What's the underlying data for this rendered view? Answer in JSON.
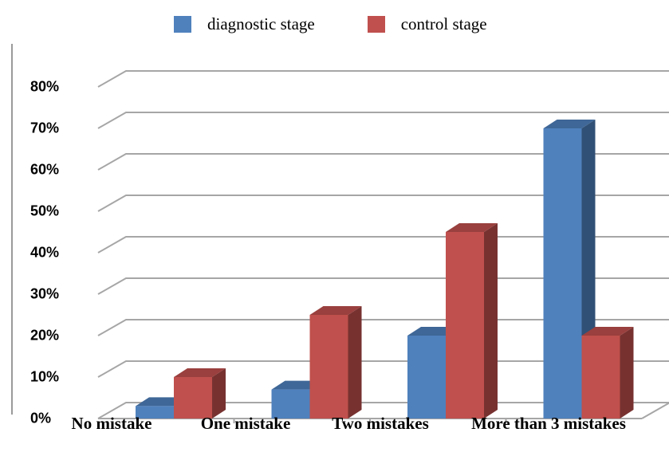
{
  "chart_data": {
    "type": "bar",
    "categories": [
      "No mistake",
      "One mistake",
      "Two mistakes",
      "More than 3 mistakes"
    ],
    "series": [
      {
        "name": "diagnostic stage",
        "values": [
          3,
          7,
          20,
          70
        ],
        "color": "#4f81bd"
      },
      {
        "name": "control stage",
        "values": [
          10,
          25,
          45,
          20
        ],
        "color": "#c0504d"
      }
    ],
    "yticks": [
      "0%",
      "10%",
      "20%",
      "30%",
      "40%",
      "50%",
      "60%",
      "70%",
      "80%"
    ],
    "ylim": [
      0,
      80
    ],
    "grid": true,
    "legend_position": "top",
    "style": "3d-column"
  }
}
